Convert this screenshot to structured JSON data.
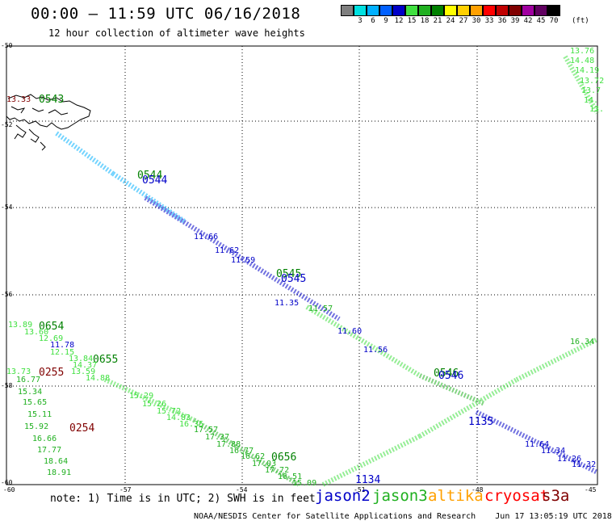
{
  "header": {
    "title": "00:00 – 11:59 UTC 06/16/2018",
    "subtitle": "12 hour collection of altimeter wave heights"
  },
  "scale": {
    "unit": "(ft)",
    "bins": [
      {
        "label": "",
        "color": "#7f7f7f"
      },
      {
        "label": "3",
        "color": "#00e0e0"
      },
      {
        "label": "6",
        "color": "#00b0ff"
      },
      {
        "label": "9",
        "color": "#0060ff"
      },
      {
        "label": "12",
        "color": "#0000c8"
      },
      {
        "label": "15",
        "color": "#40e040"
      },
      {
        "label": "18",
        "color": "#20b020"
      },
      {
        "label": "21",
        "color": "#008000"
      },
      {
        "label": "24",
        "color": "#ffff00"
      },
      {
        "label": "27",
        "color": "#ffd000"
      },
      {
        "label": "30",
        "color": "#ffa000"
      },
      {
        "label": "33",
        "color": "#ff0000"
      },
      {
        "label": "36",
        "color": "#c00000"
      },
      {
        "label": "39",
        "color": "#800000"
      },
      {
        "label": "42",
        "color": "#a000a0"
      },
      {
        "label": "45",
        "color": "#600060"
      },
      {
        "label": "70",
        "color": "#000000"
      }
    ]
  },
  "map": {
    "lat_labels": [
      "-50",
      "-52",
      "-54",
      "-56",
      "-58",
      "-60"
    ],
    "lon_labels": [
      "-60",
      "-57",
      "-54",
      "-51",
      "-48",
      "-45"
    ],
    "colors": {
      "blue": "#0000c8",
      "cyan": "#00b0ff",
      "lightgreen": "#40e040",
      "green": "#20b020",
      "darkgreen": "#008000",
      "maroon": "#800000"
    },
    "passes": [
      {
        "label": "0543",
        "color": "#008000"
      },
      {
        "label": "0544",
        "color": "#008000"
      },
      {
        "label": "0544",
        "color": "#0000c8"
      },
      {
        "label": "0545",
        "color": "#008000"
      },
      {
        "label": "0545",
        "color": "#0000c8"
      },
      {
        "label": "0546",
        "color": "#008000"
      },
      {
        "label": "0546",
        "color": "#0000c8"
      },
      {
        "label": "0654",
        "color": "#008000"
      },
      {
        "label": "0655",
        "color": "#008000"
      },
      {
        "label": "0656",
        "color": "#008000"
      },
      {
        "label": "0255",
        "color": "#800000"
      },
      {
        "label": "0254",
        "color": "#800000"
      },
      {
        "label": "1134",
        "color": "#0000c8"
      },
      {
        "label": "1135",
        "color": "#0000c8"
      }
    ],
    "values": [
      {
        "text": "11.60",
        "color": "#0000c8"
      },
      {
        "text": "11.56",
        "color": "#0000c8"
      },
      {
        "text": "11.57",
        "color": "#20b020"
      },
      {
        "text": "11.66",
        "color": "#0000c8"
      },
      {
        "text": "11.35",
        "color": "#0000c8"
      },
      {
        "text": "13.89",
        "color": "#40e040"
      },
      {
        "text": "13.60",
        "color": "#40e040"
      },
      {
        "text": "12.69",
        "color": "#40e040"
      },
      {
        "text": "11.78",
        "color": "#0000c8"
      },
      {
        "text": "12.15",
        "color": "#40e040"
      },
      {
        "text": "13.84",
        "color": "#40e040"
      },
      {
        "text": "14.37",
        "color": "#40e040"
      },
      {
        "text": "13.59",
        "color": "#40e040"
      },
      {
        "text": "14.88",
        "color": "#40e040"
      },
      {
        "text": "13.73",
        "color": "#40e040"
      },
      {
        "text": "16.77",
        "color": "#20b020"
      },
      {
        "text": "15.34",
        "color": "#20b020"
      },
      {
        "text": "15.65",
        "color": "#20b020"
      },
      {
        "text": "15.11",
        "color": "#20b020"
      },
      {
        "text": "15.92",
        "color": "#20b020"
      },
      {
        "text": "16.66",
        "color": "#20b020"
      },
      {
        "text": "17.77",
        "color": "#20b020"
      },
      {
        "text": "18.64",
        "color": "#20b020"
      },
      {
        "text": "18.91",
        "color": "#20b020"
      },
      {
        "text": "15.29",
        "color": "#40e040"
      },
      {
        "text": "15.26",
        "color": "#40e040"
      },
      {
        "text": "15.72",
        "color": "#40e040"
      },
      {
        "text": "14.83",
        "color": "#40e040"
      },
      {
        "text": "16.35",
        "color": "#40e040"
      },
      {
        "text": "17.57",
        "color": "#20b020"
      },
      {
        "text": "17.37",
        "color": "#20b020"
      },
      {
        "text": "17.88",
        "color": "#20b020"
      },
      {
        "text": "16.77",
        "color": "#20b020"
      },
      {
        "text": "16.62",
        "color": "#20b020"
      },
      {
        "text": "17.03",
        "color": "#20b020"
      },
      {
        "text": "17.72",
        "color": "#20b020"
      },
      {
        "text": "16.51",
        "color": "#20b020"
      },
      {
        "text": "15.09",
        "color": "#20b020"
      },
      {
        "text": "13.76",
        "color": "#40e040"
      },
      {
        "text": "14.48",
        "color": "#40e040"
      },
      {
        "text": "14.19",
        "color": "#40e040"
      },
      {
        "text": "13.72",
        "color": "#40e040"
      },
      {
        "text": "13.7",
        "color": "#40e040"
      },
      {
        "text": "14.",
        "color": "#40e040"
      },
      {
        "text": "13.",
        "color": "#40e040"
      },
      {
        "text": "13.33",
        "color": "#800000"
      },
      {
        "text": "16.34",
        "color": "#20b020"
      },
      {
        "text": "11.62",
        "color": "#0000c8"
      },
      {
        "text": "11.59",
        "color": "#0000c8"
      },
      {
        "text": "11.64",
        "color": "#0000c8"
      },
      {
        "text": "11.34",
        "color": "#0000c8"
      },
      {
        "text": "11.26",
        "color": "#0000c8"
      },
      {
        "text": "11.32",
        "color": "#0000c8"
      }
    ]
  },
  "footer": {
    "note": "note: 1) Time is in UTC; 2) SWH is in feet",
    "satellites": [
      {
        "name": "jason2",
        "color": "#0000c8"
      },
      {
        "name": "jason3",
        "color": "#20b020"
      },
      {
        "name": "altika",
        "color": "#ffa000"
      },
      {
        "name": "cryosat",
        "color": "#ff0000"
      },
      {
        "name": "s3a",
        "color": "#800000"
      }
    ],
    "credit": "NOAA/NESDIS Center for Satellite Applications and Research    Jun 17 13:05:19 UTC 2018"
  }
}
